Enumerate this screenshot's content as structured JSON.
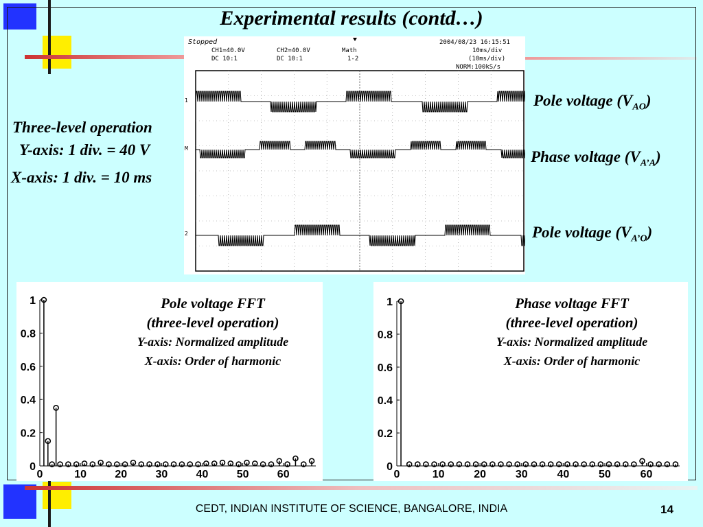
{
  "slide": {
    "title": "Experimental results (contd…)",
    "footer": "CEDT, INDIAN INSTITUTE OF SCIENCE, BANGALORE, INDIA",
    "page_number": "14"
  },
  "left_notes": {
    "line1": "Three-level operation",
    "line2": "Y-axis: 1 div. = 40 V",
    "line3": "X-axis: 1 div. = 10 ms"
  },
  "trace_labels": {
    "top_prefix": "Pole voltage (V",
    "top_sub": "AO",
    "top_suffix": ")",
    "mid_prefix": "Phase voltage (V",
    "mid_sub": "A’A",
    "mid_suffix": ")",
    "bot_prefix": "Pole voltage (V",
    "bot_sub": "A’O",
    "bot_suffix": ")"
  },
  "oscilloscope": {
    "status": "Stopped",
    "datetime": "2004/08/23  16:15:51",
    "ch1": "CH1=40.0V",
    "ch1_coupling": "DC   10:1",
    "ch2": "CH2=40.0V",
    "ch2_coupling": "DC   10:1",
    "math": "Math",
    "math_expr": "1-2",
    "timebase": "10ms/div",
    "timebase2": "(10ms/div)",
    "sampling": "NORM:100kS/s"
  },
  "fft_left": {
    "caption_title": "Pole voltage FFT",
    "caption_mode": "(three-level operation)",
    "caption_y": "Y-axis: Normalized amplitude",
    "caption_x": "X-axis: Order of harmonic"
  },
  "fft_right": {
    "caption_title": "Phase voltage FFT",
    "caption_mode": "(three-level operation)",
    "caption_y": "Y-axis: Normalized amplitude",
    "caption_x": "X-axis: Order of harmonic"
  },
  "chart_data": [
    {
      "type": "scatter",
      "title": "Pole voltage FFT",
      "xlabel": "",
      "ylabel": "",
      "xlim": [
        0,
        68
      ],
      "ylim": [
        0,
        1
      ],
      "xticks": [
        0,
        10,
        20,
        30,
        40,
        50,
        60
      ],
      "yticks": [
        0,
        0.2,
        0.4,
        0.6,
        0.8,
        1
      ],
      "x": [
        1,
        2,
        3,
        4,
        5,
        7,
        9,
        11,
        13,
        15,
        17,
        19,
        21,
        23,
        25,
        27,
        29,
        31,
        33,
        35,
        37,
        39,
        41,
        43,
        45,
        47,
        49,
        51,
        53,
        55,
        57,
        59,
        61,
        63,
        65,
        67
      ],
      "values": [
        1.0,
        0.15,
        0.01,
        0.35,
        0.01,
        0.01,
        0.01,
        0.015,
        0.01,
        0.02,
        0.01,
        0.01,
        0.01,
        0.02,
        0.01,
        0.01,
        0.01,
        0.01,
        0.01,
        0.01,
        0.01,
        0.01,
        0.015,
        0.015,
        0.02,
        0.015,
        0.01,
        0.02,
        0.015,
        0.01,
        0.01,
        0.03,
        0.01,
        0.045,
        0.01,
        0.03
      ]
    },
    {
      "type": "scatter",
      "title": "Phase voltage FFT",
      "xlabel": "",
      "ylabel": "",
      "xlim": [
        0,
        68
      ],
      "ylim": [
        0,
        1
      ],
      "xticks": [
        0,
        10,
        20,
        30,
        40,
        50,
        60
      ],
      "yticks": [
        0,
        0.2,
        0.4,
        0.6,
        0.8,
        1
      ],
      "x": [
        1,
        3,
        5,
        7,
        9,
        11,
        13,
        15,
        17,
        19,
        21,
        23,
        25,
        27,
        29,
        31,
        33,
        35,
        37,
        39,
        41,
        43,
        45,
        47,
        49,
        51,
        53,
        55,
        57,
        59,
        61,
        63,
        65,
        67
      ],
      "values": [
        1.0,
        0.01,
        0.01,
        0.01,
        0.01,
        0.01,
        0.01,
        0.01,
        0.01,
        0.01,
        0.01,
        0.01,
        0.01,
        0.01,
        0.01,
        0.01,
        0.01,
        0.01,
        0.01,
        0.01,
        0.01,
        0.01,
        0.01,
        0.01,
        0.01,
        0.01,
        0.01,
        0.01,
        0.01,
        0.03,
        0.01,
        0.01,
        0.01,
        0.01
      ]
    }
  ]
}
